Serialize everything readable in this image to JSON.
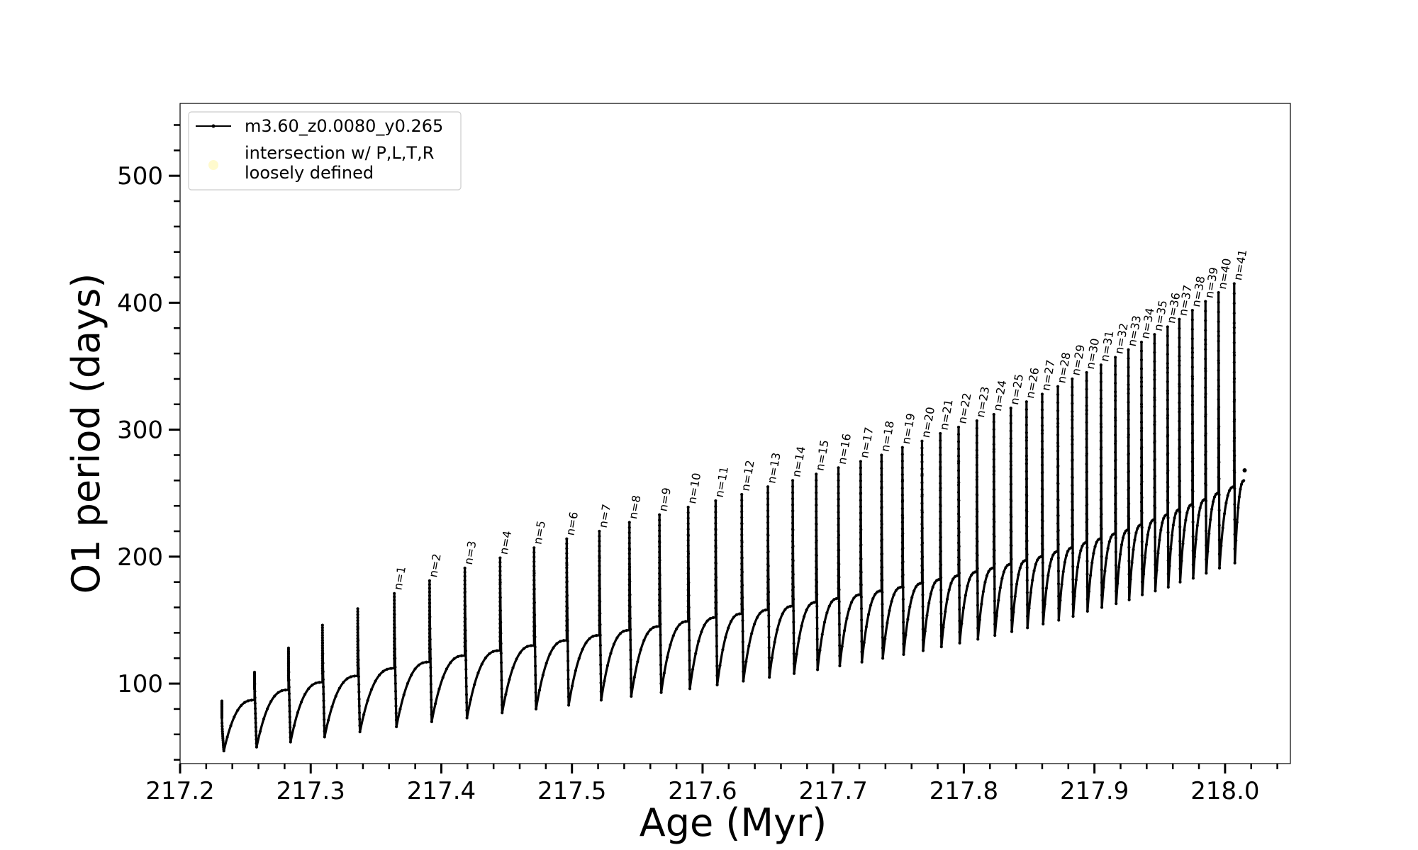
{
  "chart_data": {
    "type": "line",
    "xlabel": "Age (Myr)",
    "ylabel": "O1 period (days)",
    "xlim": [
      217.2,
      218.05
    ],
    "ylim": [
      37,
      557
    ],
    "xticks": [
      "217.2",
      "217.3",
      "217.4",
      "217.5",
      "217.6",
      "217.7",
      "217.8",
      "217.9",
      "218.0"
    ],
    "yticks": [
      "100",
      "200",
      "300",
      "400",
      "500"
    ],
    "grid": false,
    "legend_placement": "top-left",
    "legend": [
      {
        "label": "m3.60_z0.0080_y0.265",
        "color": "#000000",
        "marker": "line-dot"
      },
      {
        "label": "intersection w/ P,L,T,R",
        "label2": "loosely defined",
        "color": "#fffacd",
        "marker": "circle"
      }
    ],
    "series": [
      {
        "name": "m3.60_z0.0080_y0.265",
        "pulses": [
          {
            "n": "",
            "x": 217.232,
            "min": 47,
            "max": 73,
            "end": 87
          },
          {
            "n": "",
            "x": 217.257,
            "min": 50,
            "max": 109,
            "end": 95
          },
          {
            "n": "",
            "x": 217.283,
            "min": 54,
            "max": 128,
            "end": 101
          },
          {
            "n": "",
            "x": 217.309,
            "min": 58,
            "max": 146,
            "end": 106
          },
          {
            "n": "",
            "x": 217.336,
            "min": 62,
            "max": 159,
            "end": 112
          },
          {
            "n": "n=1",
            "x": 217.364,
            "min": 66,
            "max": 171,
            "end": 117
          },
          {
            "n": "n=2",
            "x": 217.391,
            "min": 70,
            "max": 181,
            "end": 122
          },
          {
            "n": "n=3",
            "x": 217.418,
            "min": 73,
            "max": 191,
            "end": 126
          },
          {
            "n": "n=4",
            "x": 217.445,
            "min": 77,
            "max": 199,
            "end": 130
          },
          {
            "n": "n=5",
            "x": 217.471,
            "min": 80,
            "max": 207,
            "end": 134
          },
          {
            "n": "n=6",
            "x": 217.496,
            "min": 83,
            "max": 214,
            "end": 138
          },
          {
            "n": "n=7",
            "x": 217.521,
            "min": 87,
            "max": 220,
            "end": 142
          },
          {
            "n": "n=8",
            "x": 217.544,
            "min": 90,
            "max": 227,
            "end": 145
          },
          {
            "n": "n=9",
            "x": 217.567,
            "min": 93,
            "max": 233,
            "end": 149
          },
          {
            "n": "n=10",
            "x": 217.589,
            "min": 96,
            "max": 239,
            "end": 152
          },
          {
            "n": "n=11",
            "x": 217.61,
            "min": 99,
            "max": 244,
            "end": 155
          },
          {
            "n": "n=12",
            "x": 217.63,
            "min": 102,
            "max": 249,
            "end": 158
          },
          {
            "n": "n=13",
            "x": 217.65,
            "min": 105,
            "max": 255,
            "end": 161
          },
          {
            "n": "n=14",
            "x": 217.669,
            "min": 108,
            "max": 260,
            "end": 164
          },
          {
            "n": "n=15",
            "x": 217.687,
            "min": 111,
            "max": 265,
            "end": 167
          },
          {
            "n": "n=16",
            "x": 217.704,
            "min": 114,
            "max": 270,
            "end": 170
          },
          {
            "n": "n=17",
            "x": 217.721,
            "min": 117,
            "max": 275,
            "end": 173
          },
          {
            "n": "n=18",
            "x": 217.737,
            "min": 120,
            "max": 280,
            "end": 176
          },
          {
            "n": "n=19",
            "x": 217.753,
            "min": 123,
            "max": 286,
            "end": 179
          },
          {
            "n": "n=20",
            "x": 217.768,
            "min": 126,
            "max": 291,
            "end": 182
          },
          {
            "n": "n=21",
            "x": 217.782,
            "min": 129,
            "max": 297,
            "end": 185
          },
          {
            "n": "n=22",
            "x": 217.796,
            "min": 132,
            "max": 302,
            "end": 188
          },
          {
            "n": "n=23",
            "x": 217.81,
            "min": 135,
            "max": 307,
            "end": 191
          },
          {
            "n": "n=24",
            "x": 217.823,
            "min": 138,
            "max": 312,
            "end": 194
          },
          {
            "n": "n=25",
            "x": 217.836,
            "min": 141,
            "max": 317,
            "end": 197
          },
          {
            "n": "n=26",
            "x": 217.848,
            "min": 144,
            "max": 322,
            "end": 200
          },
          {
            "n": "n=27",
            "x": 217.86,
            "min": 147,
            "max": 328,
            "end": 204
          },
          {
            "n": "n=28",
            "x": 217.872,
            "min": 150,
            "max": 334,
            "end": 207
          },
          {
            "n": "n=29",
            "x": 217.883,
            "min": 153,
            "max": 340,
            "end": 211
          },
          {
            "n": "n=30",
            "x": 217.894,
            "min": 157,
            "max": 345,
            "end": 214
          },
          {
            "n": "n=31",
            "x": 217.905,
            "min": 160,
            "max": 351,
            "end": 218
          },
          {
            "n": "n=32",
            "x": 217.916,
            "min": 163,
            "max": 357,
            "end": 221
          },
          {
            "n": "n=33",
            "x": 217.926,
            "min": 166,
            "max": 363,
            "end": 225
          },
          {
            "n": "n=34",
            "x": 217.936,
            "min": 170,
            "max": 369,
            "end": 229
          },
          {
            "n": "n=35",
            "x": 217.946,
            "min": 173,
            "max": 375,
            "end": 233
          },
          {
            "n": "n=36",
            "x": 217.956,
            "min": 176,
            "max": 381,
            "end": 237
          },
          {
            "n": "n=37",
            "x": 217.965,
            "min": 180,
            "max": 387,
            "end": 241
          },
          {
            "n": "n=38",
            "x": 217.975,
            "min": 183,
            "max": 394,
            "end": 245
          },
          {
            "n": "n=39",
            "x": 217.985,
            "min": 187,
            "max": 401,
            "end": 250
          },
          {
            "n": "n=40",
            "x": 217.995,
            "min": 191,
            "max": 408,
            "end": 255
          },
          {
            "n": "n=41",
            "x": 218.007,
            "min": 195,
            "max": 415,
            "end": 260
          }
        ],
        "final": {
          "x": 218.015,
          "y": 268
        }
      }
    ]
  }
}
